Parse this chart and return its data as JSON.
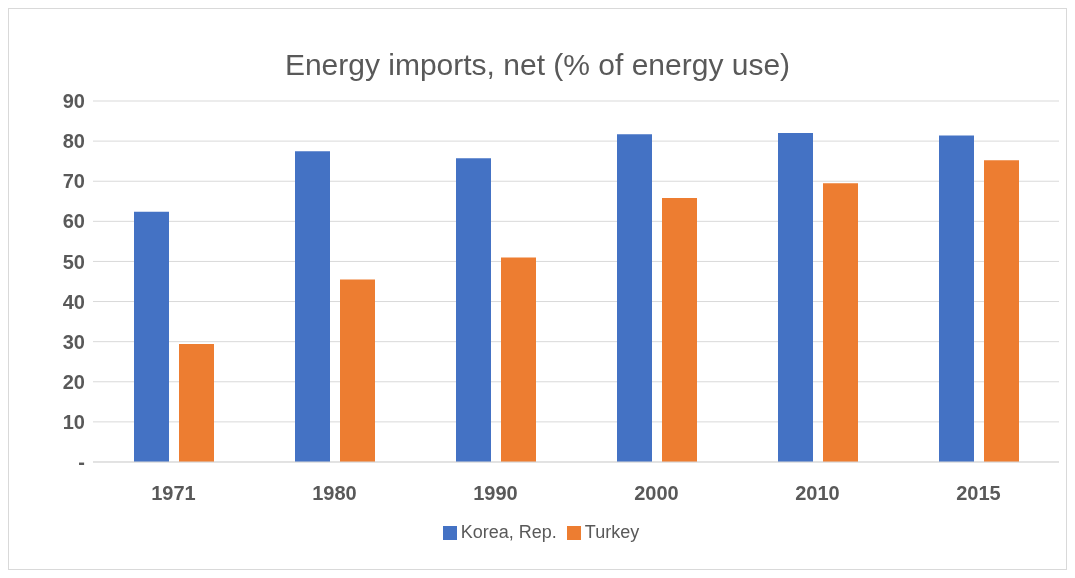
{
  "chart_data": {
    "type": "bar",
    "title": "Energy imports, net (% of energy use)",
    "categories": [
      "1971",
      "1980",
      "1990",
      "2000",
      "2010",
      "2015"
    ],
    "series": [
      {
        "name": "Korea, Rep.",
        "color": "#4472c4",
        "values": [
          62.4,
          77.5,
          75.7,
          81.7,
          82.0,
          81.4
        ]
      },
      {
        "name": "Turkey",
        "color": "#ed7d31",
        "values": [
          29.4,
          45.5,
          51.0,
          65.8,
          69.5,
          75.2
        ]
      }
    ],
    "ylim": [
      0,
      90
    ],
    "yticks": [
      {
        "value": 0,
        "label": "-"
      },
      10,
      20,
      30,
      40,
      50,
      60,
      70,
      80,
      90
    ],
    "grid": "y",
    "legend": "bottom"
  }
}
